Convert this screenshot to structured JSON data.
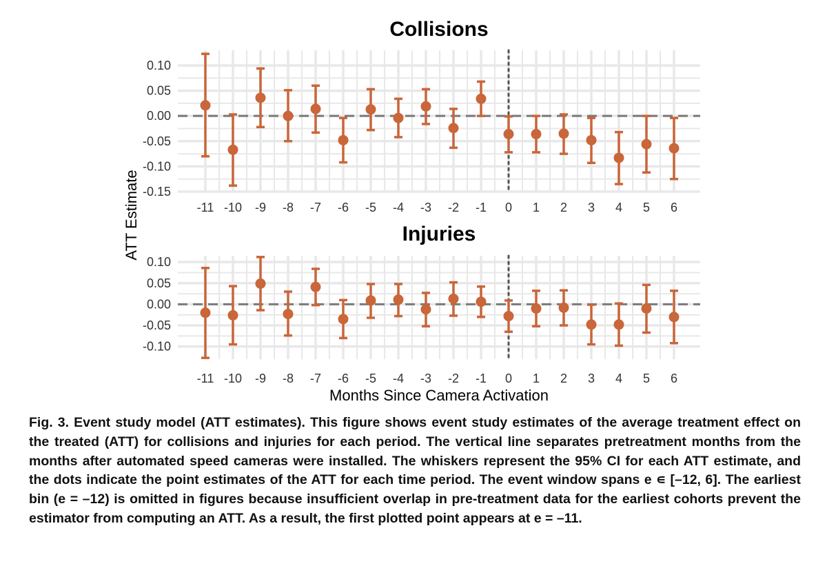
{
  "figure": {
    "ylabel": "ATT Estimate",
    "xlabel": "Months Since Camera Activation",
    "caption": "Fig. 3. Event study model (ATT estimates). This figure shows event study estimates of the average treatment effect on the treated (ATT) for collisions and injuries for each period. The vertical line separates pretreatment months from the months after automated speed cameras were installed. The whiskers represent the 95% CI for each ATT estimate, and the dots indicate the point estimates of the ATT for each time period. The event window spans e ∊ [–12, 6]. The earliest bin (e = –12) is omitted in figures because insufficient overlap in pre-treatment data for the earliest cohorts prevent the estimator from computing an ATT. As a result, the first plotted point appears at e = –11."
  },
  "colors": {
    "point": "#c9663a",
    "grid": "#e8e8e8",
    "reference_line": "#7a7a7a"
  },
  "chart_data": [
    {
      "type": "scatter",
      "title": "Collisions",
      "x": [
        -11,
        -10,
        -9,
        -8,
        -7,
        -6,
        -5,
        -4,
        -3,
        -2,
        -1,
        0,
        1,
        2,
        3,
        4,
        5,
        6
      ],
      "x_tick_labels": [
        "-11",
        "-10",
        "-9",
        "-8",
        "-7",
        "-6",
        "-5",
        "-4",
        "-3",
        "-2",
        "-1",
        "0",
        "1",
        "2",
        "3",
        "4",
        "5",
        "6"
      ],
      "y": [
        0.021,
        -0.067,
        0.036,
        0.0,
        0.014,
        -0.048,
        0.013,
        -0.004,
        0.019,
        -0.024,
        0.034,
        -0.036,
        -0.036,
        -0.035,
        -0.048,
        -0.083,
        -0.056,
        -0.064
      ],
      "ci_low": [
        -0.08,
        -0.138,
        -0.022,
        -0.05,
        -0.033,
        -0.092,
        -0.028,
        -0.042,
        -0.016,
        -0.063,
        0.0,
        -0.072,
        -0.072,
        -0.075,
        -0.093,
        -0.135,
        -0.112,
        -0.125
      ],
      "ci_high": [
        0.123,
        0.003,
        0.094,
        0.051,
        0.06,
        -0.004,
        0.053,
        0.034,
        0.053,
        0.014,
        0.068,
        -0.001,
        0.0,
        0.003,
        -0.004,
        -0.032,
        0.0,
        -0.004
      ],
      "y_ticks": [
        0.1,
        0.05,
        0.0,
        -0.05,
        -0.1,
        -0.15
      ],
      "y_tick_labels": [
        "0.10",
        "0.05",
        "0.00",
        "-0.05",
        "-0.10",
        "-0.15"
      ],
      "ylim": [
        -0.15,
        0.13
      ],
      "horizontal_reference": 0,
      "vertical_reference": 0,
      "grid": true
    },
    {
      "type": "scatter",
      "title": "Injuries",
      "x": [
        -11,
        -10,
        -9,
        -8,
        -7,
        -6,
        -5,
        -4,
        -3,
        -2,
        -1,
        0,
        1,
        2,
        3,
        4,
        5,
        6
      ],
      "x_tick_labels": [
        "-11",
        "-10",
        "-9",
        "-8",
        "-7",
        "-6",
        "-5",
        "-4",
        "-3",
        "-2",
        "-1",
        "0",
        "1",
        "2",
        "3",
        "4",
        "5",
        "6"
      ],
      "y": [
        -0.02,
        -0.026,
        0.049,
        -0.023,
        0.041,
        -0.035,
        0.009,
        0.011,
        -0.012,
        0.013,
        0.006,
        -0.028,
        -0.01,
        -0.008,
        -0.048,
        -0.048,
        -0.01,
        -0.03
      ],
      "ci_low": [
        -0.127,
        -0.095,
        -0.014,
        -0.074,
        -0.002,
        -0.08,
        -0.032,
        -0.028,
        -0.052,
        -0.027,
        -0.03,
        -0.065,
        -0.052,
        -0.05,
        -0.095,
        -0.098,
        -0.067,
        -0.092
      ],
      "ci_high": [
        0.086,
        0.043,
        0.112,
        0.03,
        0.084,
        0.01,
        0.048,
        0.048,
        0.027,
        0.052,
        0.042,
        0.009,
        0.032,
        0.033,
        -0.001,
        0.002,
        0.046,
        0.032
      ],
      "y_ticks": [
        0.1,
        0.05,
        0.0,
        -0.05,
        -0.1
      ],
      "y_tick_labels": [
        "0.10",
        "0.05",
        "0.00",
        "-0.05",
        "-0.10"
      ],
      "ylim": [
        -0.13,
        0.115
      ],
      "horizontal_reference": 0,
      "vertical_reference": 0,
      "grid": true
    }
  ]
}
